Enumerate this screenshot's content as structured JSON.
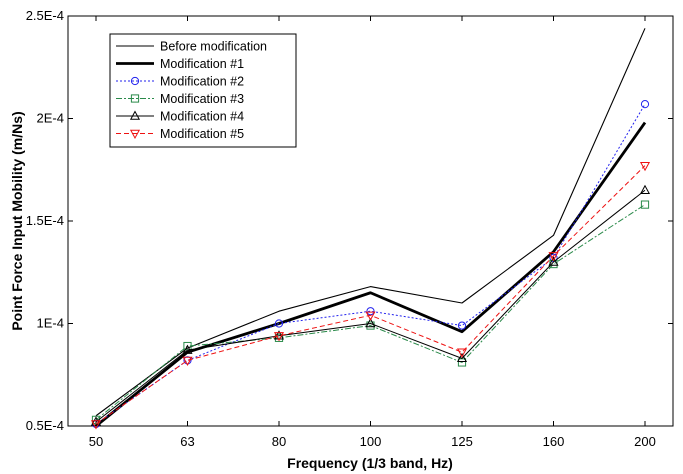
{
  "chart_data": {
    "type": "line",
    "xlabel": "Frequency (1/3 band, Hz)",
    "ylabel": "Point Force Input Mobility (m/Ns)",
    "categories": [
      "50",
      "63",
      "80",
      "100",
      "125",
      "160",
      "200"
    ],
    "y_ticks": [
      {
        "value": 5e-05,
        "label": "0.5E-4"
      },
      {
        "value": 0.0001,
        "label": "1E-4"
      },
      {
        "value": 0.00015,
        "label": "1.5E-4"
      },
      {
        "value": 0.0002,
        "label": "2E-4"
      },
      {
        "value": 0.00025,
        "label": "2.5E-4"
      }
    ],
    "ylim": [
      5e-05,
      0.00025
    ],
    "grid": false,
    "legend_position": "top-left",
    "series": [
      {
        "name": "Before modification",
        "color": "#000000",
        "style": "solid-thin",
        "marker": "none",
        "values": [
          5.5e-05,
          8.8e-05,
          0.000106,
          0.000118,
          0.00011,
          0.000143,
          0.000244
        ]
      },
      {
        "name": "Modification #1",
        "color": "#000000",
        "style": "solid-thick",
        "marker": "none",
        "values": [
          5e-05,
          8.6e-05,
          0.0001,
          0.000115,
          9.6e-05,
          0.000135,
          0.000198
        ]
      },
      {
        "name": "Modification #2",
        "color": "#2222ee",
        "style": "dotted",
        "marker": "circle",
        "values": [
          5.1e-05,
          8.2e-05,
          0.0001,
          0.000106,
          9.9e-05,
          0.000132,
          0.000207
        ]
      },
      {
        "name": "Modification #3",
        "color": "#2a8a4a",
        "style": "dashdot",
        "marker": "square",
        "values": [
          5.3e-05,
          8.9e-05,
          9.3e-05,
          9.9e-05,
          8.1e-05,
          0.000129,
          0.000158
        ]
      },
      {
        "name": "Modification #4",
        "color": "#000000",
        "style": "solid",
        "marker": "triangle-up",
        "values": [
          5.2e-05,
          8.7e-05,
          9.4e-05,
          0.0001,
          8.3e-05,
          0.00013,
          0.000165
        ]
      },
      {
        "name": "Modification #5",
        "color": "#ee1111",
        "style": "dashed",
        "marker": "triangle-down",
        "values": [
          5.1e-05,
          8.2e-05,
          9.4e-05,
          0.000104,
          8.6e-05,
          0.000133,
          0.000177
        ]
      }
    ]
  }
}
